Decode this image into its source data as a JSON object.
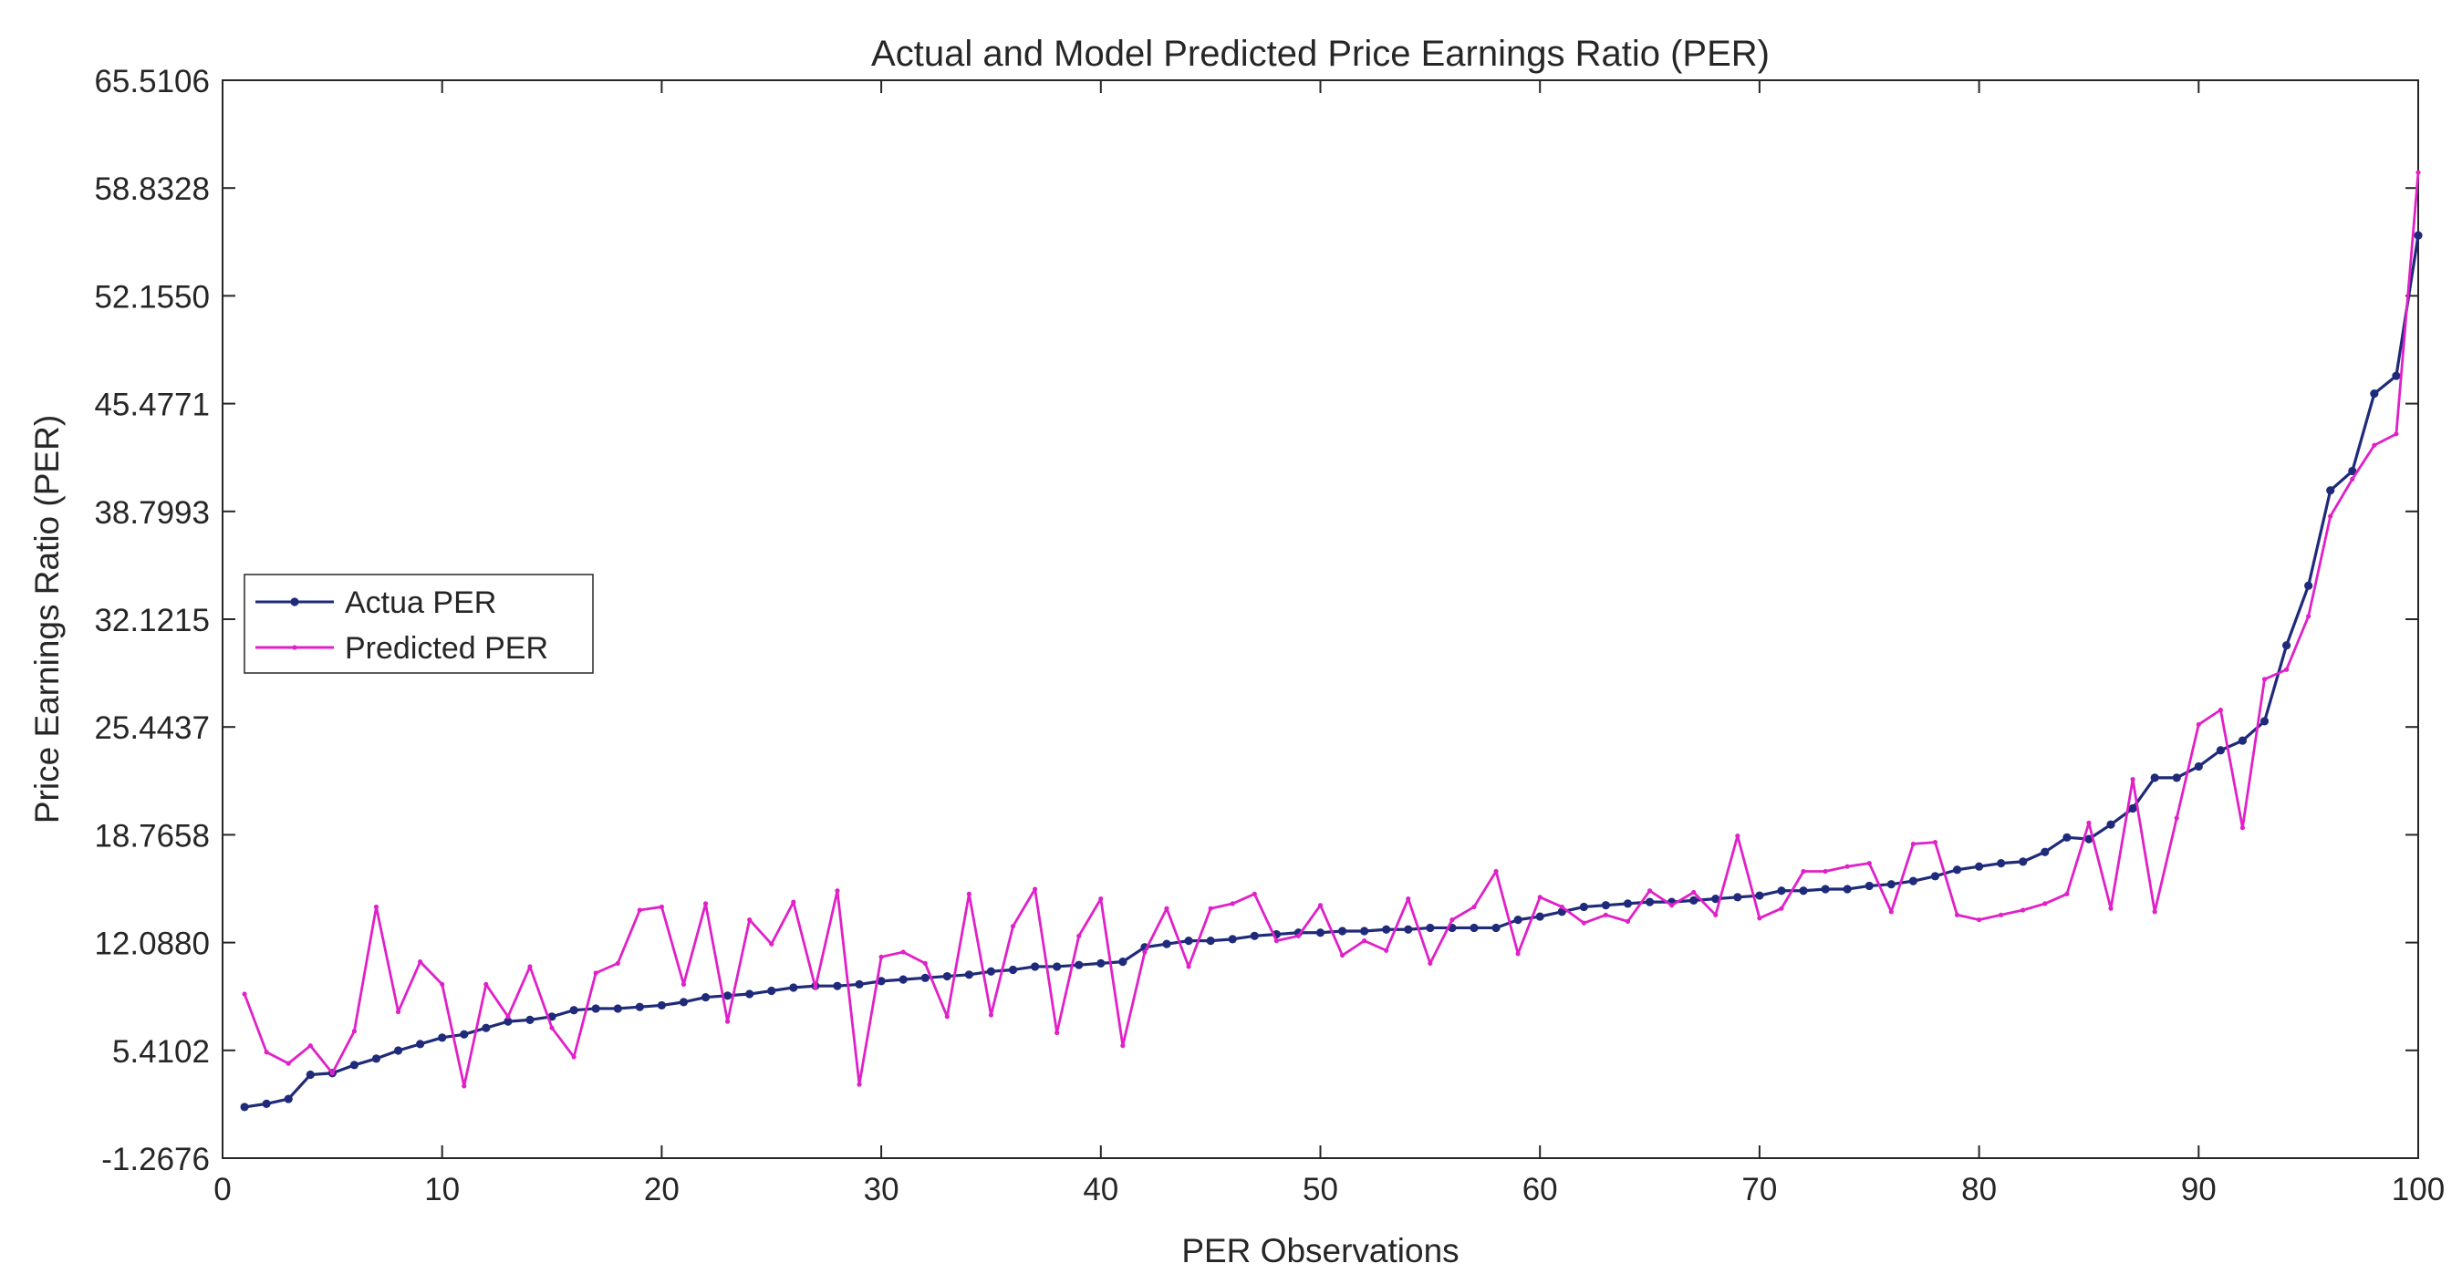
{
  "chart_data": {
    "type": "line",
    "title": "Actual and Model Predicted Price Earnings Ratio (PER)",
    "xlabel": "PER Observations",
    "ylabel": "Price Earnings Ratio (PER)",
    "xlim": [
      0,
      100
    ],
    "ylim": [
      -1.2676,
      65.5106
    ],
    "xticks": [
      0,
      10,
      20,
      30,
      40,
      50,
      60,
      70,
      80,
      90,
      100
    ],
    "xtick_labels": [
      "0",
      "10",
      "20",
      "30",
      "40",
      "50",
      "60",
      "70",
      "80",
      "90",
      "100"
    ],
    "yticks": [
      -1.2676,
      5.4102,
      12.088,
      18.7658,
      25.4437,
      32.1215,
      38.7993,
      45.4771,
      52.155,
      58.8328,
      65.5106
    ],
    "ytick_labels": [
      "-1.2676",
      "5.4102",
      "12.0880",
      "18.7658",
      "25.4437",
      "32.1215",
      "38.7993",
      "45.4771",
      "52.1550",
      "58.8328",
      "65.5106"
    ],
    "grid": false,
    "legend_position": "center-left",
    "x": [
      1,
      2,
      3,
      4,
      5,
      6,
      7,
      8,
      9,
      10,
      11,
      12,
      13,
      14,
      15,
      16,
      17,
      18,
      19,
      20,
      21,
      22,
      23,
      24,
      25,
      26,
      27,
      28,
      29,
      30,
      31,
      32,
      33,
      34,
      35,
      36,
      37,
      38,
      39,
      40,
      41,
      42,
      43,
      44,
      45,
      46,
      47,
      48,
      49,
      50,
      51,
      52,
      53,
      54,
      55,
      56,
      57,
      58,
      59,
      60,
      61,
      62,
      63,
      64,
      65,
      66,
      67,
      68,
      69,
      70,
      71,
      72,
      73,
      74,
      75,
      76,
      77,
      78,
      79,
      80,
      81,
      82,
      83,
      84,
      85,
      86,
      87,
      88,
      89,
      90,
      91,
      92,
      93,
      94,
      95,
      96,
      97,
      98,
      99,
      100
    ],
    "series": [
      {
        "name": "Actua PER",
        "color": "#1f2a7a",
        "marker": "dot",
        "values": [
          1.9,
          2.1,
          2.4,
          3.9,
          4.0,
          4.5,
          4.9,
          5.4,
          5.8,
          6.2,
          6.4,
          6.8,
          7.2,
          7.3,
          7.5,
          7.9,
          8.0,
          8.0,
          8.1,
          8.2,
          8.4,
          8.7,
          8.8,
          8.9,
          9.1,
          9.3,
          9.4,
          9.4,
          9.5,
          9.7,
          9.8,
          9.9,
          10.0,
          10.1,
          10.3,
          10.4,
          10.6,
          10.6,
          10.7,
          10.8,
          10.9,
          11.8,
          12.0,
          12.2,
          12.2,
          12.3,
          12.5,
          12.6,
          12.7,
          12.7,
          12.8,
          12.8,
          12.9,
          12.9,
          13.0,
          13.0,
          13.0,
          13.0,
          13.5,
          13.7,
          14.0,
          14.3,
          14.4,
          14.5,
          14.6,
          14.6,
          14.7,
          14.8,
          14.9,
          15.0,
          15.3,
          15.3,
          15.4,
          15.4,
          15.6,
          15.7,
          15.9,
          16.2,
          16.6,
          16.8,
          17.0,
          17.1,
          17.7,
          18.6,
          18.5,
          19.4,
          20.4,
          22.3,
          22.3,
          23.0,
          24.0,
          24.6,
          25.8,
          30.5,
          34.2,
          40.1,
          41.3,
          46.1,
          47.2,
          55.9
        ]
      },
      {
        "name": "Predicted PER",
        "color": "#e020c8",
        "marker": "small-dot",
        "values": [
          8.9,
          5.3,
          4.6,
          5.7,
          4.0,
          6.6,
          14.3,
          7.8,
          10.9,
          9.5,
          3.2,
          9.5,
          7.5,
          10.6,
          6.8,
          5.0,
          10.2,
          10.8,
          14.1,
          14.3,
          9.5,
          14.5,
          7.2,
          13.5,
          12.0,
          14.6,
          9.3,
          15.3,
          3.3,
          11.2,
          11.5,
          10.8,
          7.5,
          15.1,
          7.6,
          13.1,
          15.4,
          6.5,
          12.5,
          14.8,
          5.7,
          11.5,
          14.2,
          10.6,
          14.2,
          14.5,
          15.1,
          12.2,
          12.5,
          14.4,
          11.3,
          12.2,
          11.6,
          14.8,
          10.8,
          13.5,
          14.3,
          16.5,
          11.4,
          14.9,
          14.3,
          13.3,
          13.8,
          13.4,
          15.3,
          14.4,
          15.2,
          13.8,
          18.7,
          13.6,
          14.2,
          16.5,
          16.5,
          16.8,
          17.0,
          14.0,
          18.2,
          18.3,
          13.8,
          13.5,
          13.8,
          14.1,
          14.5,
          15.1,
          19.5,
          14.2,
          22.2,
          14.0,
          19.8,
          25.6,
          26.5,
          19.2,
          28.4,
          29.0,
          32.3,
          38.5,
          40.8,
          42.9,
          43.6,
          59.8
        ]
      }
    ]
  }
}
